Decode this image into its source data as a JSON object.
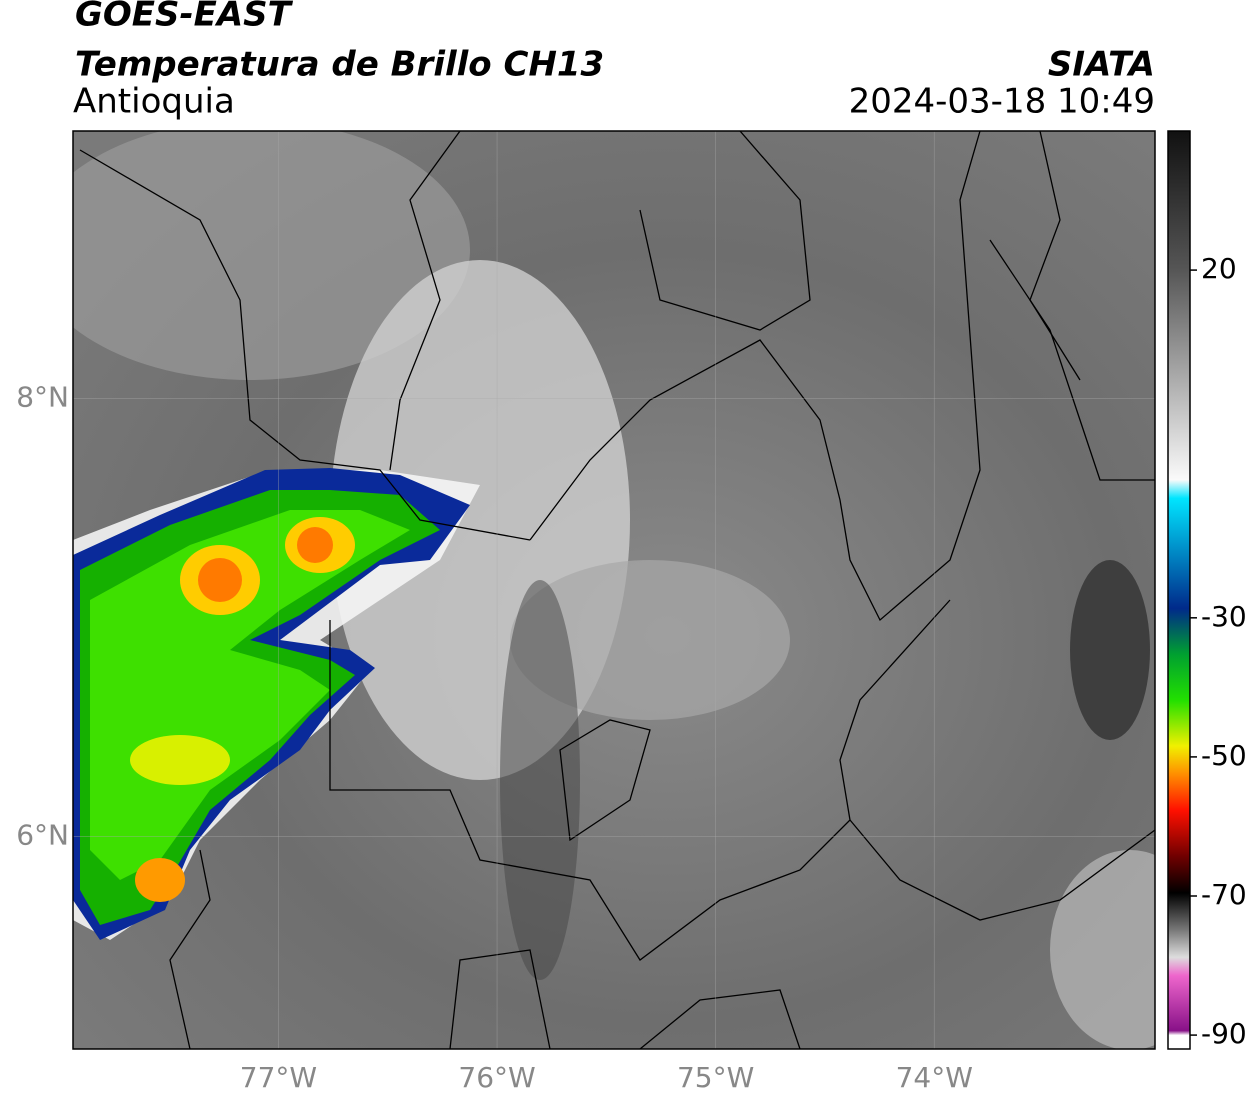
{
  "header": {
    "title": "GOES-EAST",
    "subtitle": "Temperatura de Brillo CH13",
    "region": "Antioquia",
    "source": "SIATA",
    "datetime": "2024-03-18 10:49"
  },
  "map": {
    "xlim": [
      -77.94,
      -72.99
    ],
    "ylim": [
      5.03,
      9.22
    ],
    "xticks": [
      {
        "value": -77,
        "label": "77°W"
      },
      {
        "value": -76,
        "label": "76°W"
      },
      {
        "value": -75,
        "label": "75°W"
      },
      {
        "value": -74,
        "label": "74°W"
      }
    ],
    "yticks": [
      {
        "value": 6,
        "label": "6°N"
      },
      {
        "value": 8,
        "label": "8°N"
      }
    ],
    "grid": true
  },
  "colorbar": {
    "lim": [
      -92,
      40
    ],
    "ticks": [
      20,
      -30,
      -50,
      -70,
      -90
    ]
  }
}
